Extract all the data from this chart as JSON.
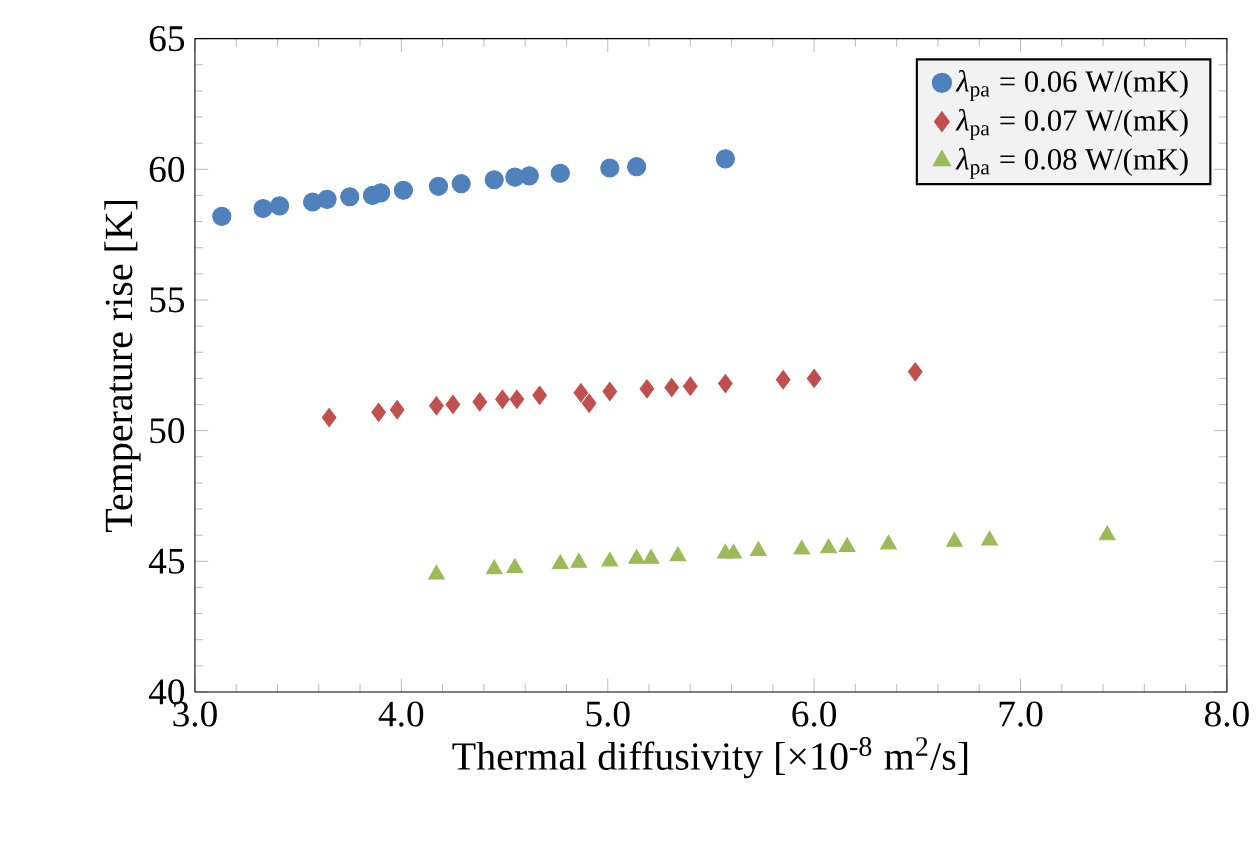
{
  "chart_data": {
    "type": "scatter",
    "xlabel": "Thermal diffusivity [×10$^{-8}$ m$^{2}$/s]",
    "ylabel": "Temperature rise [K]",
    "xlim": [
      3,
      8
    ],
    "ylim": [
      40,
      65
    ],
    "xticks": [
      {
        "value": 3,
        "label": "3.0"
      },
      {
        "value": 4,
        "label": "4.0"
      },
      {
        "value": 5,
        "label": "5.0"
      },
      {
        "value": 6,
        "label": "6.0"
      },
      {
        "value": 7,
        "label": "7.0"
      },
      {
        "value": 8,
        "label": "8.0"
      }
    ],
    "yticks": [
      40,
      45,
      50,
      55,
      60,
      65
    ],
    "grid": false,
    "legend": "top right",
    "series": [
      {
        "name": "*λ*$_{pa}$ = 0.06 W/(mK)",
        "color": "#4f81bd",
        "marker": "circle",
        "x": [
          3.13,
          3.33,
          3.41,
          3.57,
          3.64,
          3.75,
          3.86,
          3.9,
          4.01,
          4.18,
          4.29,
          4.45,
          4.55,
          4.62,
          4.77,
          5.01,
          5.14,
          5.57
        ],
        "values": [
          58.2,
          58.5,
          58.6,
          58.75,
          58.85,
          58.95,
          59.0,
          59.1,
          59.2,
          59.35,
          59.45,
          59.6,
          59.7,
          59.75,
          59.85,
          60.05,
          60.1,
          60.4
        ]
      },
      {
        "name": "*λ*$_{pa}$ = 0.07 W/(mK)",
        "color": "#c0504d",
        "marker": "diamond",
        "x": [
          3.65,
          3.89,
          3.98,
          4.17,
          4.25,
          4.38,
          4.49,
          4.56,
          4.67,
          4.87,
          4.91,
          5.01,
          5.19,
          5.31,
          5.4,
          5.57,
          5.85,
          6.0,
          6.49
        ],
        "values": [
          50.5,
          50.7,
          50.8,
          50.95,
          51.0,
          51.1,
          51.2,
          51.2,
          51.35,
          51.45,
          51.05,
          51.5,
          51.6,
          51.65,
          51.7,
          51.8,
          51.95,
          52.0,
          52.25
        ]
      },
      {
        "name": "*λ*$_{pa}$ = 0.08 W/(mK)",
        "color": "#9bbb59",
        "marker": "triangle",
        "x": [
          4.17,
          4.45,
          4.55,
          4.77,
          4.86,
          5.01,
          5.14,
          5.21,
          5.34,
          5.57,
          5.61,
          5.73,
          5.94,
          6.07,
          6.16,
          6.36,
          6.68,
          6.85,
          7.42
        ],
        "values": [
          44.5,
          44.7,
          44.75,
          44.9,
          44.95,
          45.0,
          45.1,
          45.1,
          45.2,
          45.3,
          45.3,
          45.4,
          45.45,
          45.5,
          45.55,
          45.65,
          45.75,
          45.8,
          46.0
        ]
      }
    ]
  }
}
